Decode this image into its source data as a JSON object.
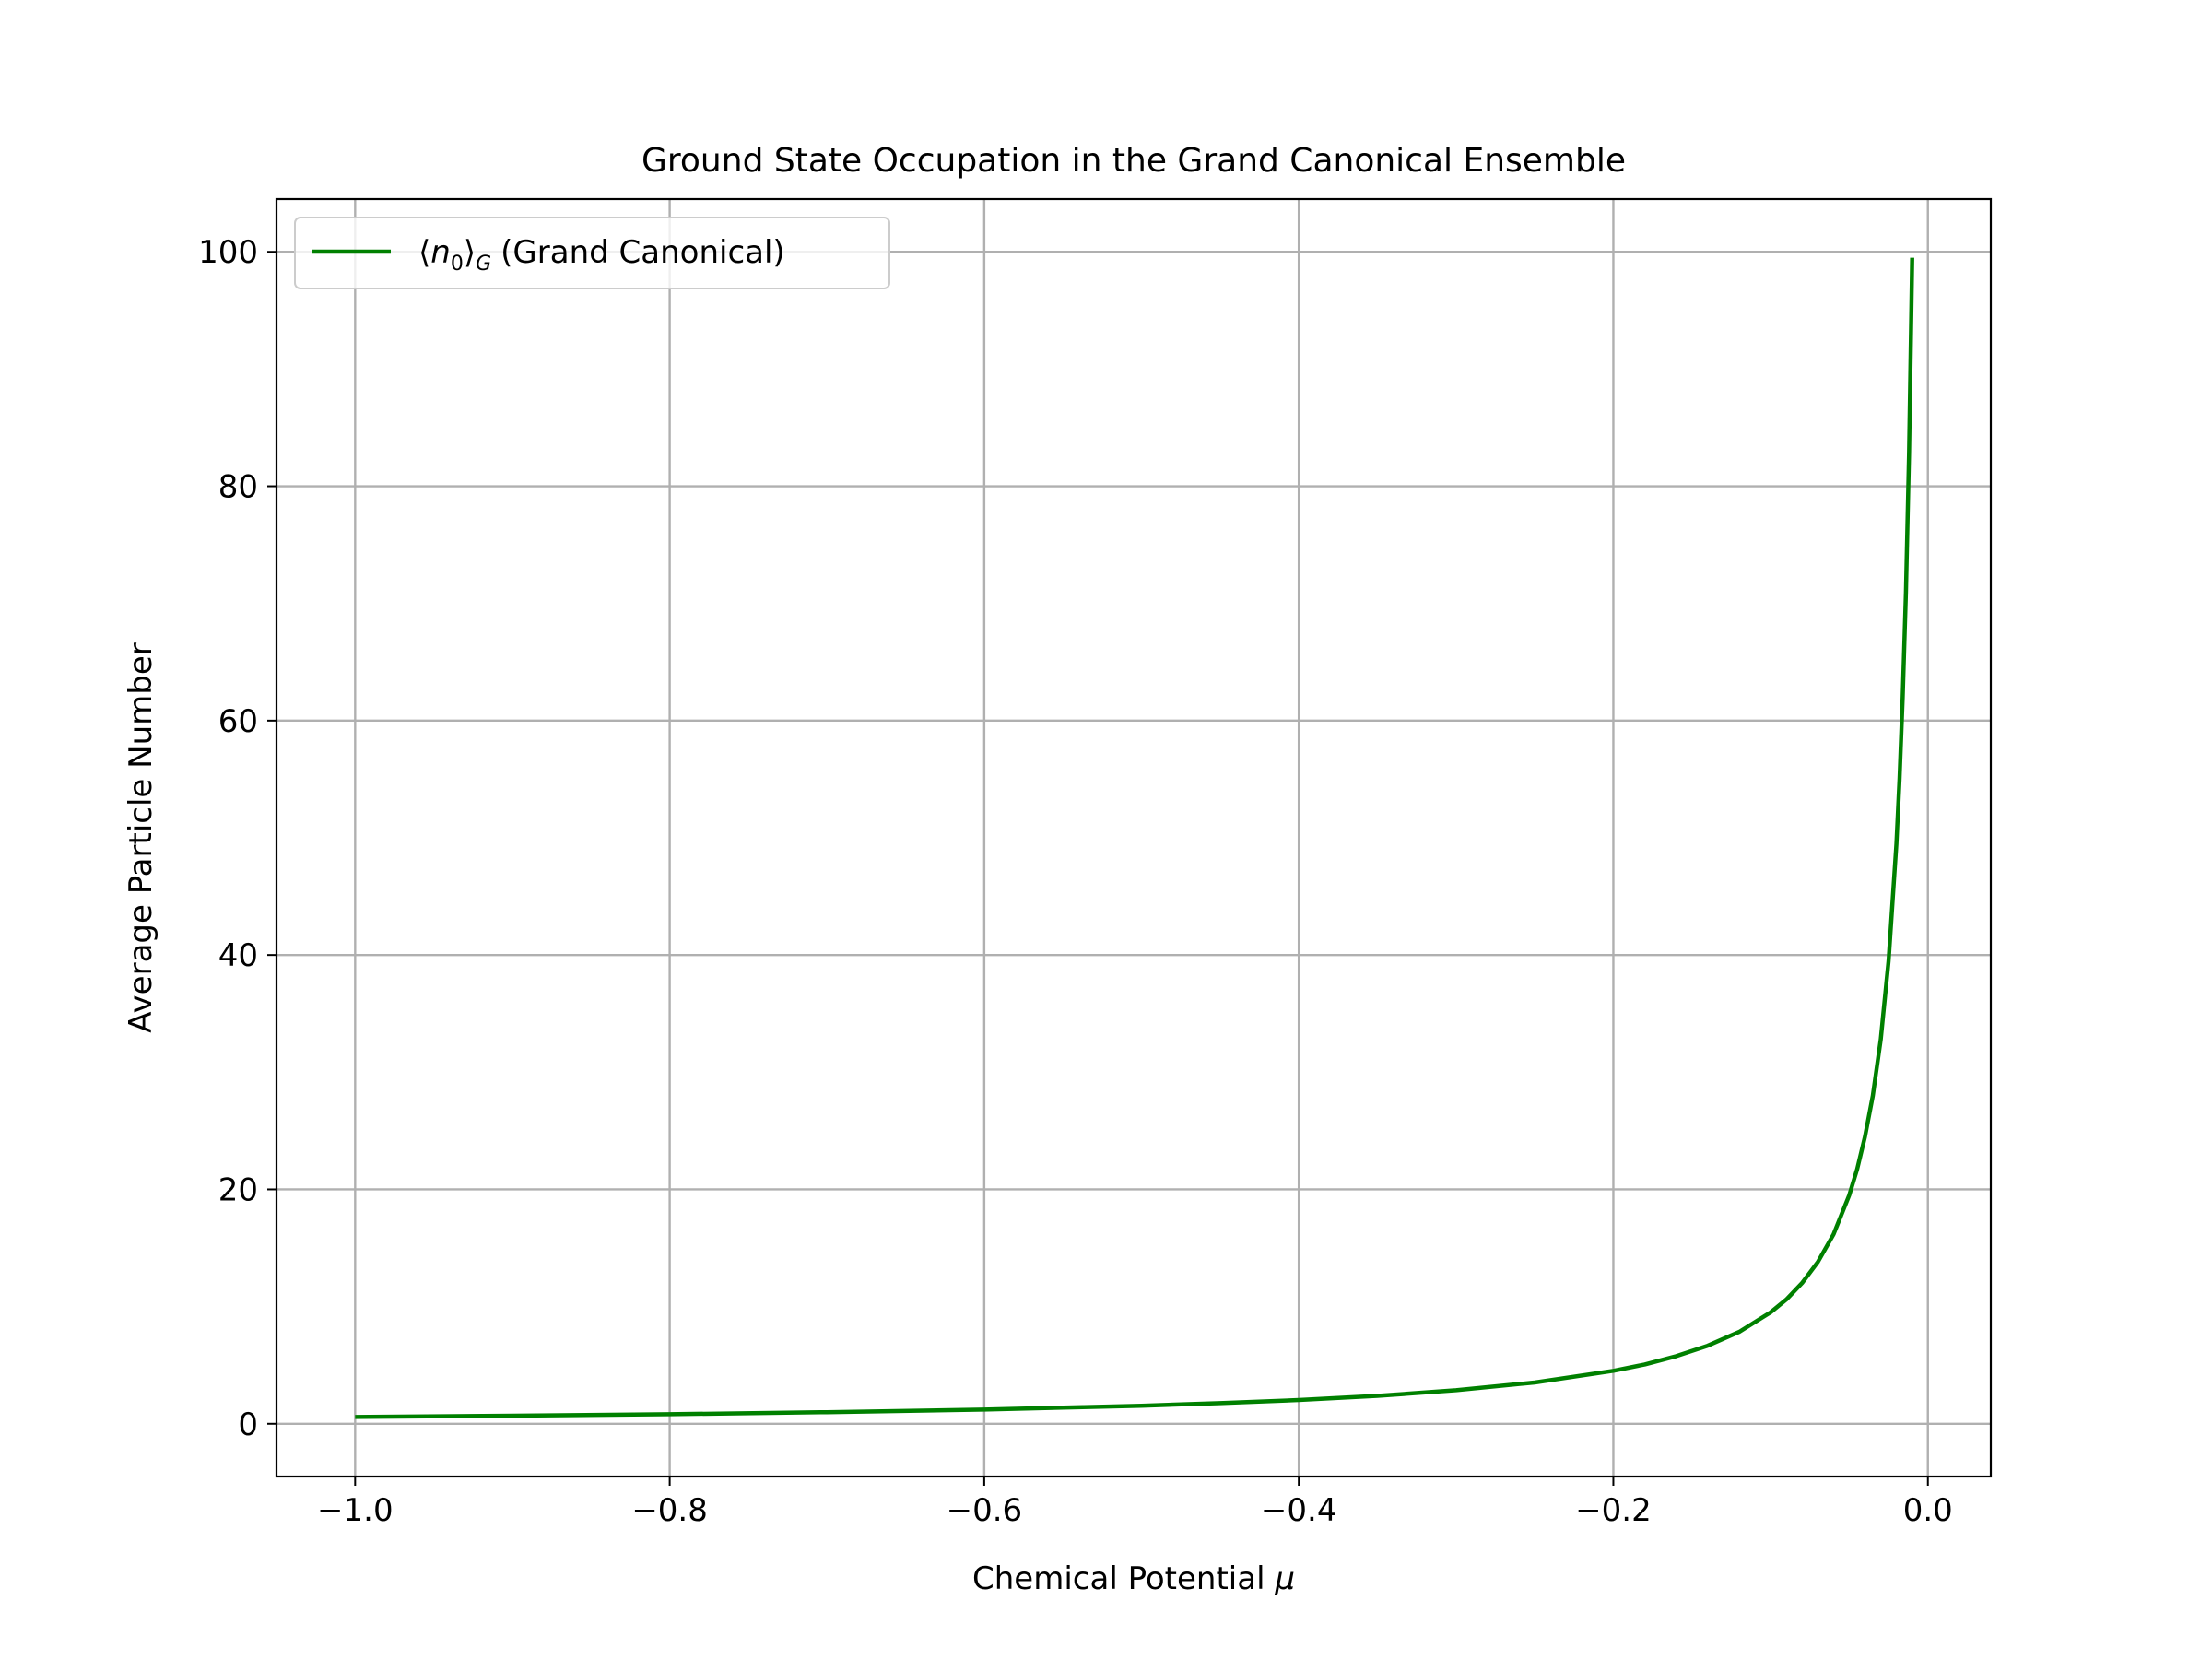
{
  "chart_data": {
    "type": "line",
    "title": "Ground State Occupation in the Grand Canonical Ensemble",
    "xlabel": "Chemical Potential",
    "xlabel_symbol": "μ",
    "ylabel": "Average Particle Number",
    "xlim": [
      -1.05,
      0.04
    ],
    "ylim": [
      -4.5,
      104.5
    ],
    "xticks": [
      -1.0,
      -0.8,
      -0.6,
      -0.4,
      -0.2,
      0.0
    ],
    "xtick_labels": [
      "−1.0",
      "−0.8",
      "−0.6",
      "−0.4",
      "−0.2",
      "0.0"
    ],
    "yticks": [
      0,
      20,
      40,
      60,
      80,
      100
    ],
    "ytick_labels": [
      "0",
      "20",
      "40",
      "60",
      "80",
      "100"
    ],
    "grid": true,
    "legend_position": "upper-left",
    "series": [
      {
        "name": "⟨n₀⟩_G (Grand Canonical)",
        "legend_parts": {
          "open": "⟨",
          "var": "n",
          "sub": "0",
          "close": "⟩",
          "ens": "G",
          "suffix": "(Grand Canonical)"
        },
        "color": "#008000",
        "x": [
          -1.0,
          -0.9,
          -0.8,
          -0.7,
          -0.6,
          -0.5,
          -0.45,
          -0.4,
          -0.35,
          -0.3,
          -0.25,
          -0.2,
          -0.18,
          -0.16,
          -0.14,
          -0.12,
          -0.1,
          -0.09,
          -0.08,
          -0.07,
          -0.06,
          -0.05,
          -0.045,
          -0.04,
          -0.035,
          -0.03,
          -0.025,
          -0.02,
          -0.018,
          -0.016,
          -0.014,
          -0.012,
          -0.01
        ],
        "y": [
          0.58,
          0.69,
          0.82,
          0.99,
          1.21,
          1.54,
          1.76,
          2.03,
          2.38,
          2.86,
          3.52,
          4.52,
          5.06,
          5.77,
          6.66,
          7.84,
          9.51,
          10.61,
          12.01,
          13.8,
          16.17,
          19.5,
          21.73,
          24.5,
          28.0,
          32.8,
          39.5,
          49.5,
          55.06,
          62.0,
          70.9,
          82.8,
          99.5
        ]
      }
    ]
  }
}
